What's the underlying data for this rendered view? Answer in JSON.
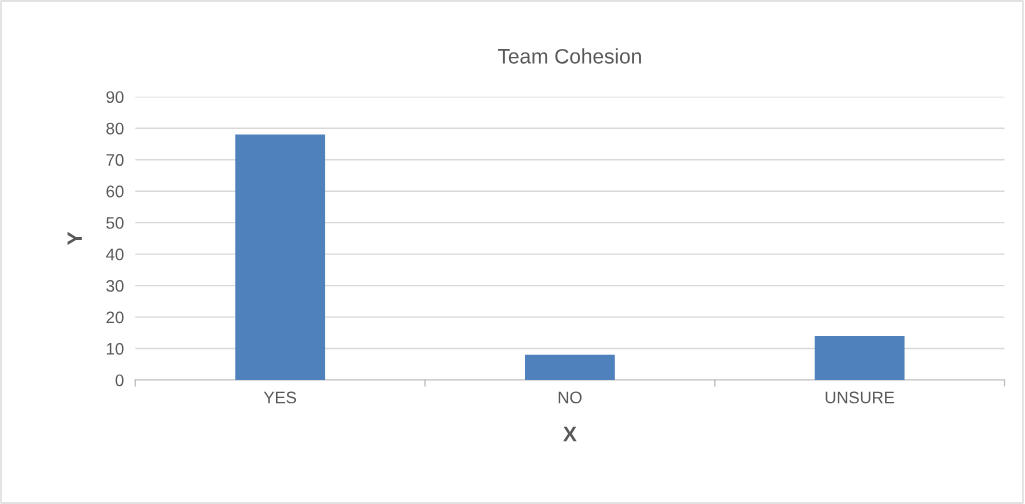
{
  "chart_data": {
    "type": "bar",
    "title": "Team Cohesion",
    "xlabel": "X",
    "ylabel": "Y",
    "categories": [
      "YES",
      "NO",
      "UNSURE"
    ],
    "values": [
      78,
      8,
      14
    ],
    "color": "#4f81bd",
    "ylim": [
      0,
      90
    ],
    "yticks": [
      0,
      10,
      20,
      30,
      40,
      50,
      60,
      70,
      80,
      90
    ],
    "grid": "y",
    "legend": false
  }
}
